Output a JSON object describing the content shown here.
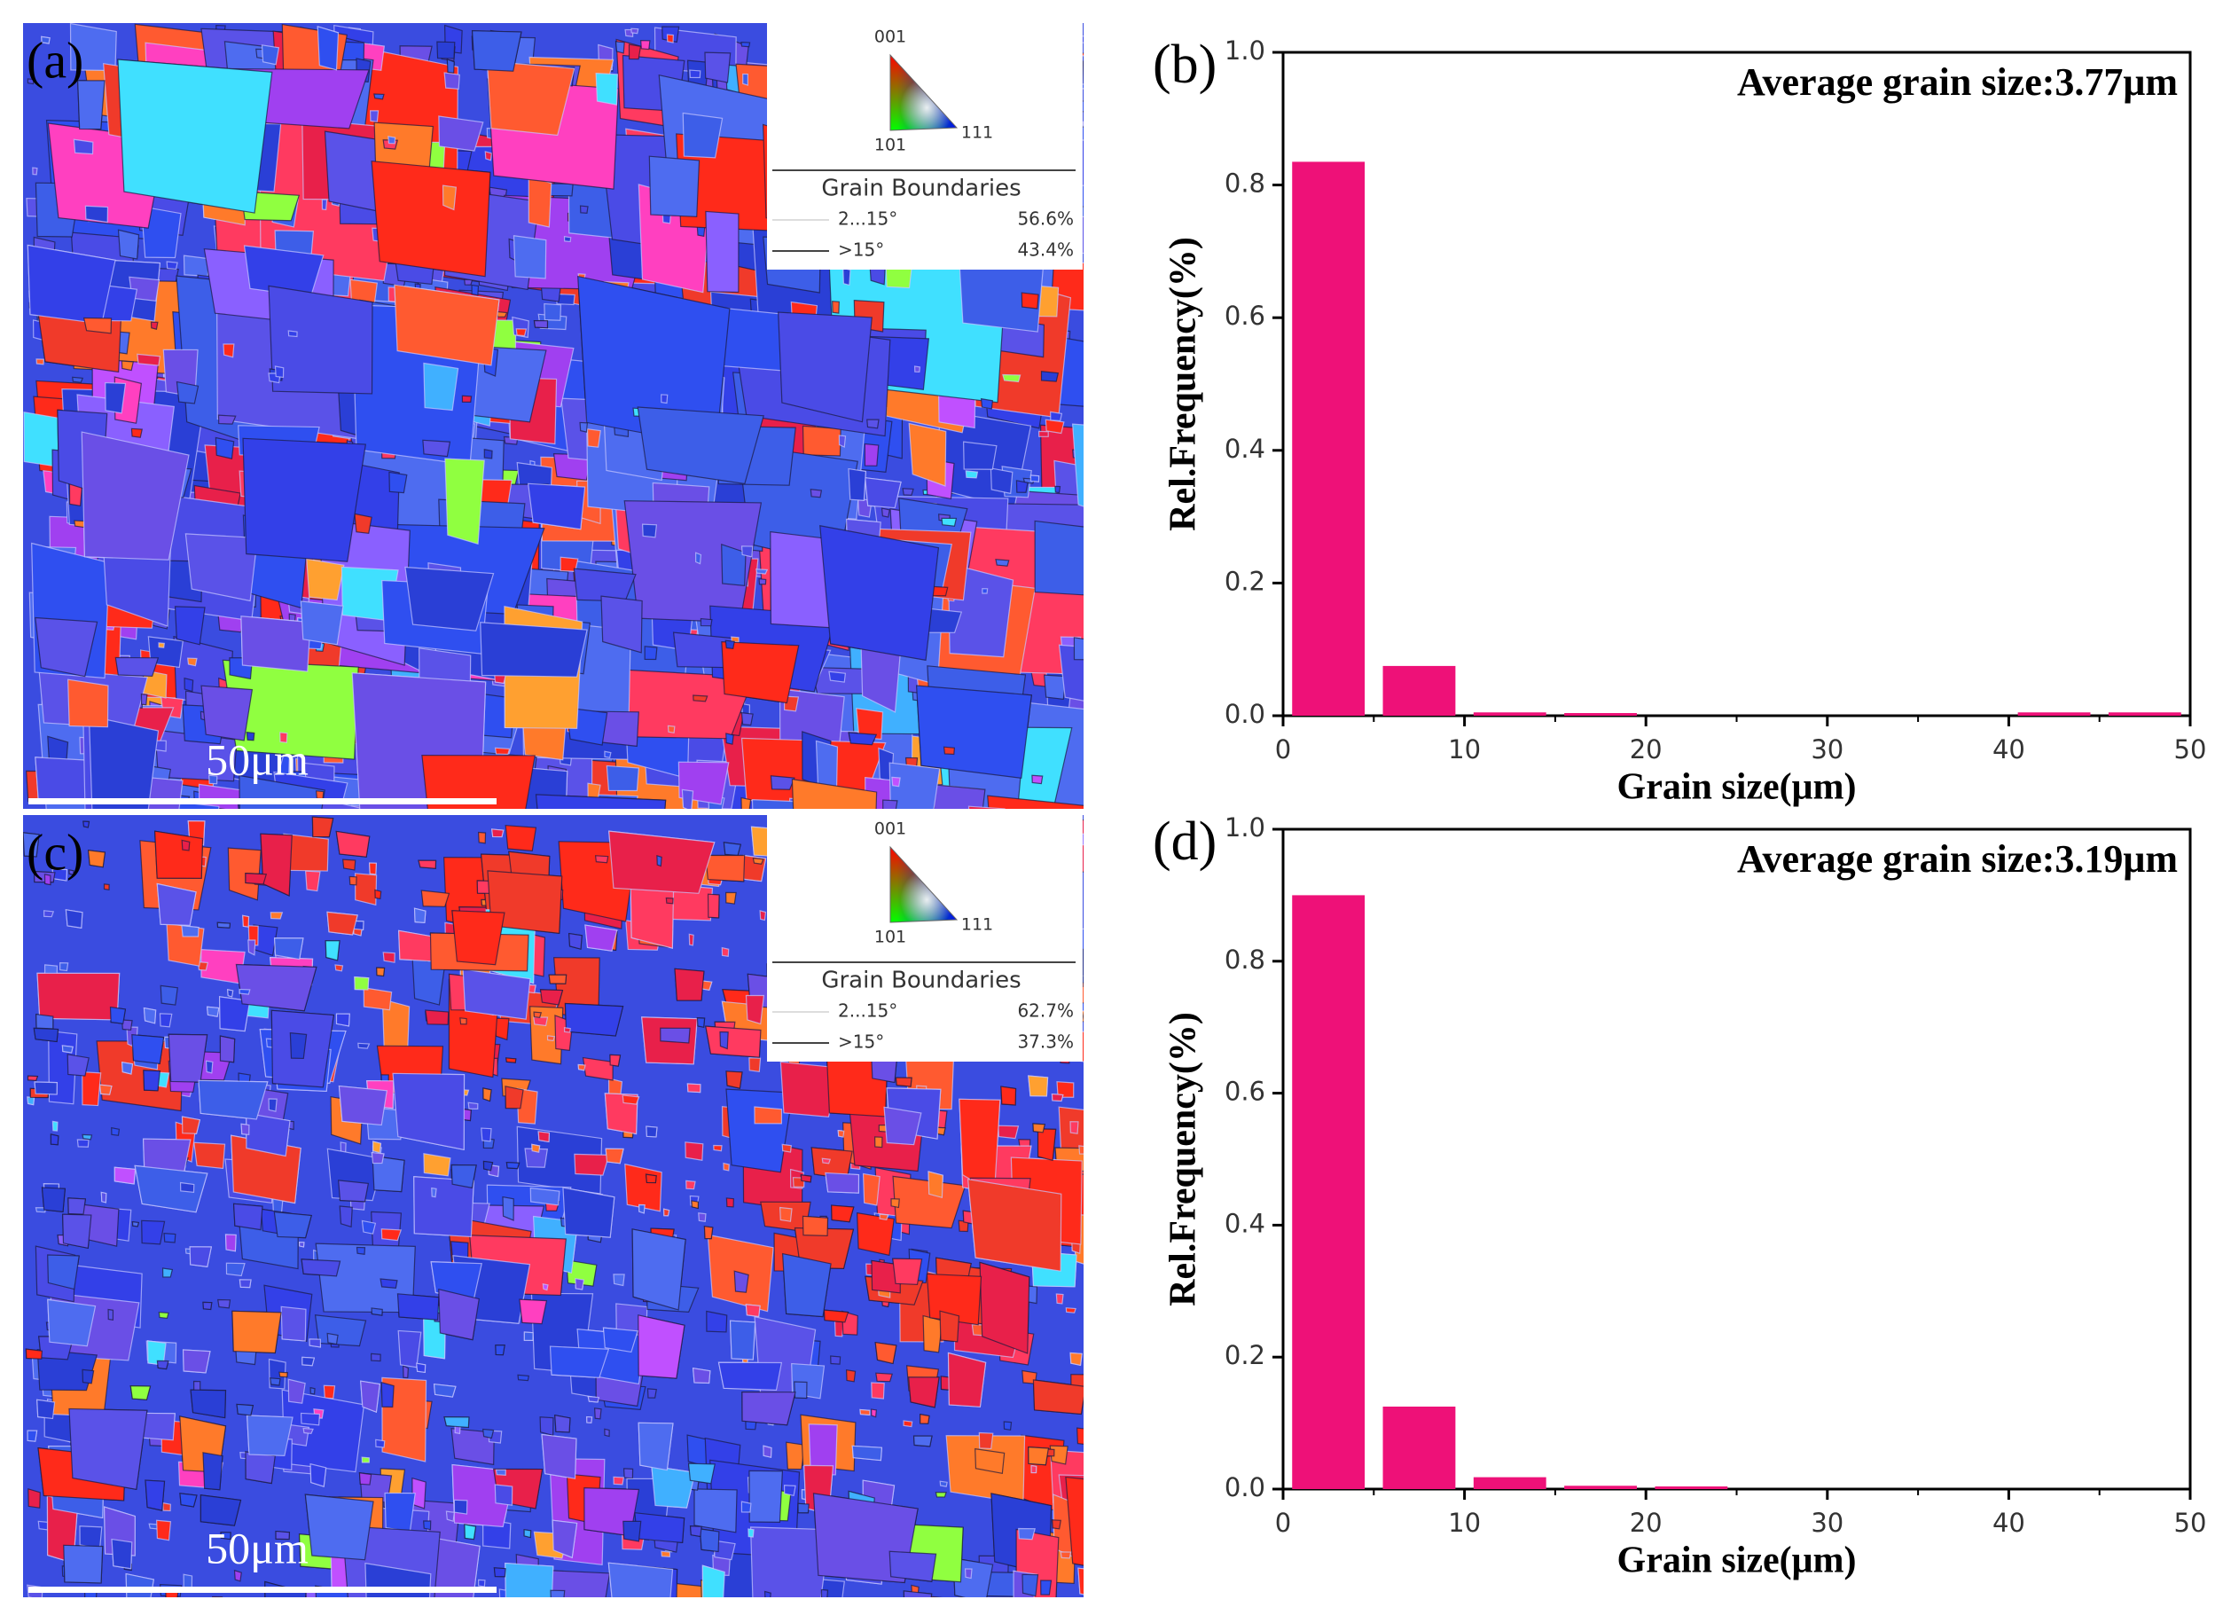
{
  "maps": [
    {
      "label": "(a)",
      "scale_bar": "50μm",
      "legend": {
        "poles": [
          "001",
          "101",
          "111"
        ],
        "title": "Grain Boundaries",
        "rows": [
          {
            "range": "2...15°",
            "fraction": "56.6%"
          },
          {
            "range": ">15°",
            "fraction": "43.4%"
          }
        ]
      }
    },
    {
      "label": "(c)",
      "scale_bar": "50μm",
      "legend": {
        "poles": [
          "001",
          "101",
          "111"
        ],
        "title": "Grain Boundaries",
        "rows": [
          {
            "range": "2...15°",
            "fraction": "62.7%"
          },
          {
            "range": ">15°",
            "fraction": "37.3%"
          }
        ]
      }
    }
  ],
  "chart_data": [
    {
      "type": "histogram",
      "panel_label": "(b)",
      "annotation": "Average grain size:3.77μm",
      "xlabel": "Grain size(μm)",
      "ylabel": "Rel.Frequency(%)",
      "color": "#ee1178",
      "bins": [
        0,
        5,
        10,
        15,
        20,
        25,
        30,
        35,
        40,
        45,
        50
      ],
      "values": [
        0.835,
        0.075,
        0.005,
        0.004,
        0,
        0,
        0,
        0,
        0.005,
        0.005
      ],
      "xlim": [
        0,
        50
      ],
      "ylim": [
        0,
        1
      ],
      "xticks": [
        0,
        10,
        20,
        30,
        40,
        50
      ],
      "yticks": [
        {
          "value": 0,
          "label": "0.0"
        },
        0.2,
        0.4,
        0.6,
        0.8,
        {
          "value": 1,
          "label": "1.0"
        }
      ]
    },
    {
      "type": "histogram",
      "panel_label": "(d)",
      "annotation": "Average grain size:3.19μm",
      "xlabel": "Grain size(μm)",
      "ylabel": "Rel.Frequency(%)",
      "color": "#ee1178",
      "bins": [
        0,
        5,
        10,
        15,
        20,
        25,
        30,
        35,
        40,
        45,
        50
      ],
      "values": [
        0.9,
        0.125,
        0.018,
        0.005,
        0.004,
        0,
        0,
        0,
        0,
        0
      ],
      "xlim": [
        0,
        50
      ],
      "ylim": [
        0,
        1
      ],
      "xticks": [
        0,
        10,
        20,
        30,
        40,
        50
      ],
      "yticks": [
        {
          "value": 0,
          "label": "0.0"
        },
        0.2,
        0.4,
        0.6,
        0.8,
        {
          "value": 1,
          "label": "1.0"
        }
      ]
    }
  ]
}
